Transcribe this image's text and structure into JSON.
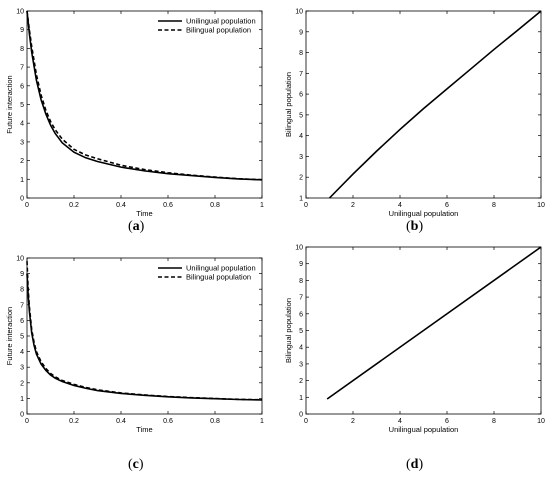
{
  "chart_data": [
    {
      "id": "a",
      "type": "line",
      "panel_label": "a",
      "xlabel": "Time",
      "ylabel": "Future interaction",
      "xlim": [
        0,
        1
      ],
      "ylim": [
        0,
        10
      ],
      "xticks": [
        0,
        0.2,
        0.4,
        0.6,
        0.8,
        1
      ],
      "yticks": [
        0,
        1,
        2,
        3,
        4,
        5,
        6,
        7,
        8,
        9,
        10
      ],
      "xtick_labels": [
        "0",
        "0.2",
        "0.4",
        "0.6",
        "0.8",
        "1"
      ],
      "ytick_labels": [
        "0",
        "1",
        "2",
        "3",
        "4",
        "5",
        "6",
        "7",
        "8",
        "9",
        "10"
      ],
      "legend": "top-right",
      "series": [
        {
          "name": "Unilingual population",
          "style": "solid",
          "x": [
            0,
            0.01,
            0.02,
            0.04,
            0.06,
            0.08,
            0.1,
            0.12,
            0.15,
            0.2,
            0.25,
            0.3,
            0.4,
            0.5,
            0.6,
            0.7,
            0.8,
            0.9,
            1.0
          ],
          "y": [
            10.0,
            8.8,
            7.8,
            6.3,
            5.25,
            4.5,
            3.9,
            3.45,
            2.95,
            2.45,
            2.15,
            1.95,
            1.65,
            1.45,
            1.3,
            1.2,
            1.1,
            1.02,
            0.97
          ]
        },
        {
          "name": "Bilingual population",
          "style": "dashed",
          "x": [
            0,
            0.01,
            0.02,
            0.04,
            0.06,
            0.08,
            0.1,
            0.12,
            0.15,
            0.2,
            0.25,
            0.3,
            0.4,
            0.5,
            0.6,
            0.7,
            0.8,
            0.9,
            1.0
          ],
          "y": [
            10.0,
            9.0,
            8.1,
            6.6,
            5.5,
            4.7,
            4.1,
            3.65,
            3.15,
            2.6,
            2.3,
            2.1,
            1.75,
            1.52,
            1.35,
            1.22,
            1.12,
            1.03,
            0.98
          ]
        }
      ]
    },
    {
      "id": "b",
      "type": "line",
      "panel_label": "b",
      "xlabel": "Unilingual population",
      "ylabel": "Bilingual population",
      "xlim": [
        0,
        10
      ],
      "ylim": [
        1,
        10
      ],
      "xticks": [
        0,
        2,
        4,
        6,
        8,
        10
      ],
      "yticks": [
        1,
        2,
        3,
        4,
        5,
        6,
        7,
        8,
        9,
        10
      ],
      "xtick_labels": [
        "0",
        "2",
        "4",
        "6",
        "8",
        "10"
      ],
      "ytick_labels": [
        "1",
        "2",
        "3",
        "4",
        "5",
        "6",
        "7",
        "8",
        "9",
        "10"
      ],
      "series": [
        {
          "style": "solid",
          "x": [
            1.0,
            2.0,
            3.0,
            4.0,
            5.0,
            6.0,
            7.0,
            8.0,
            9.0,
            10.0
          ],
          "y": [
            1.0,
            2.15,
            3.25,
            4.3,
            5.3,
            6.25,
            7.2,
            8.15,
            9.07,
            10.0
          ]
        }
      ]
    },
    {
      "id": "c",
      "type": "line",
      "panel_label": "c",
      "xlabel": "Time",
      "ylabel": "Future interaction",
      "xlim": [
        0,
        1
      ],
      "ylim": [
        0,
        10
      ],
      "xticks": [
        0,
        0.2,
        0.4,
        0.6,
        0.8,
        1
      ],
      "yticks": [
        0,
        1,
        2,
        3,
        4,
        5,
        6,
        7,
        8,
        9,
        10
      ],
      "xtick_labels": [
        "0",
        "0.2",
        "0.4",
        "0.6",
        "0.8",
        "1"
      ],
      "ytick_labels": [
        "0",
        "1",
        "2",
        "3",
        "4",
        "5",
        "6",
        "7",
        "8",
        "9",
        "10"
      ],
      "legend": "top-right",
      "series": [
        {
          "name": "Unilingual population",
          "style": "solid",
          "x": [
            0,
            0.005,
            0.01,
            0.02,
            0.03,
            0.04,
            0.06,
            0.08,
            0.1,
            0.12,
            0.15,
            0.2,
            0.25,
            0.3,
            0.4,
            0.5,
            0.6,
            0.7,
            0.8,
            0.9,
            1.0
          ],
          "y": [
            9.0,
            7.6,
            6.6,
            5.2,
            4.4,
            3.85,
            3.2,
            2.8,
            2.5,
            2.3,
            2.08,
            1.83,
            1.65,
            1.5,
            1.32,
            1.2,
            1.1,
            1.03,
            0.98,
            0.93,
            0.9
          ]
        },
        {
          "name": "Bilingual population",
          "style": "dashed",
          "x": [
            0,
            0.005,
            0.01,
            0.02,
            0.03,
            0.04,
            0.06,
            0.08,
            0.1,
            0.12,
            0.15,
            0.2,
            0.25,
            0.3,
            0.4,
            0.5,
            0.6,
            0.7,
            0.8,
            0.9,
            1.0
          ],
          "y": [
            9.8,
            8.0,
            6.9,
            5.4,
            4.6,
            4.0,
            3.35,
            2.92,
            2.6,
            2.38,
            2.15,
            1.9,
            1.7,
            1.55,
            1.35,
            1.22,
            1.12,
            1.05,
            0.99,
            0.94,
            0.91
          ]
        }
      ]
    },
    {
      "id": "d",
      "type": "line",
      "panel_label": "d",
      "xlabel": "Unilingual population",
      "ylabel": "Bilingual population",
      "xlim": [
        0,
        10
      ],
      "ylim": [
        0,
        10
      ],
      "xticks": [
        0,
        2,
        4,
        6,
        8,
        10
      ],
      "yticks": [
        0,
        1,
        2,
        3,
        4,
        5,
        6,
        7,
        8,
        9,
        10
      ],
      "xtick_labels": [
        "0",
        "2",
        "4",
        "6",
        "8",
        "10"
      ],
      "ytick_labels": [
        "0",
        "1",
        "2",
        "3",
        "4",
        "5",
        "6",
        "7",
        "8",
        "9",
        "10"
      ],
      "series": [
        {
          "style": "solid",
          "x": [
            0.9,
            10.0
          ],
          "y": [
            0.9,
            10.0
          ]
        }
      ]
    }
  ]
}
